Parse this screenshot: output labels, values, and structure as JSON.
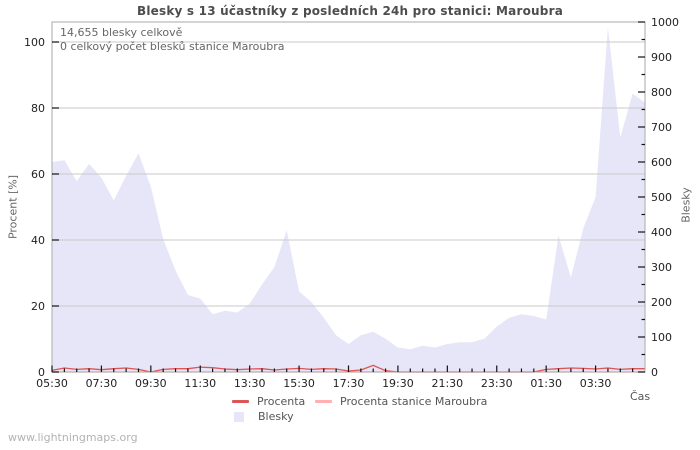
{
  "header": {
    "title": "Blesky s 13 účastníky z posledních 24h pro stanici: Maroubra"
  },
  "annotations": {
    "total": "14,655 blesky celkově",
    "station": "0 celkový počet blesků stanice Maroubra"
  },
  "watermark": "www.lightningmaps.org",
  "colors": {
    "procenta_line": "#dd5555",
    "station_line": "#ffb0b0",
    "blesky_area": "#e6e6f8",
    "grid": "#c9c9c9",
    "border": "#aaaaaa",
    "tick": "#111111"
  },
  "chart_data": {
    "type": "area",
    "title": "Blesky s 13 účastníky z posledních 24h pro stanici: Maroubra",
    "x_axis_label": "Čas",
    "x": [
      "05:30",
      "06:00",
      "06:30",
      "07:00",
      "07:30",
      "08:00",
      "08:30",
      "09:00",
      "09:30",
      "10:00",
      "10:30",
      "11:00",
      "11:30",
      "12:00",
      "12:30",
      "13:00",
      "13:30",
      "14:00",
      "14:30",
      "15:00",
      "15:30",
      "16:00",
      "16:30",
      "17:00",
      "17:30",
      "18:00",
      "18:30",
      "19:00",
      "19:30",
      "20:00",
      "20:30",
      "21:00",
      "21:30",
      "22:00",
      "22:30",
      "23:00",
      "23:30",
      "00:00",
      "00:30",
      "01:00",
      "01:30",
      "02:00",
      "02:30",
      "03:00",
      "03:30",
      "04:00",
      "04:30",
      "05:00",
      "05:30"
    ],
    "x_major_labels": [
      "05:30",
      "07:30",
      "09:30",
      "11:30",
      "13:30",
      "15:30",
      "17:30",
      "19:30",
      "21:30",
      "23:30",
      "01:30",
      "03:30"
    ],
    "left_axis": {
      "label": "Procent  [%]",
      "min": 0,
      "max": 100,
      "ticks": [
        0,
        20,
        40,
        60,
        80,
        100
      ]
    },
    "right_axis": {
      "label": "Blesky",
      "min": 0,
      "max": 1000,
      "ticks": [
        0,
        100,
        200,
        300,
        400,
        500,
        600,
        700,
        800,
        900,
        1000
      ],
      "minor_step": 50
    },
    "grid": "horizontal",
    "legend_position": "bottom-center",
    "series": [
      {
        "name": "Blesky",
        "type": "area",
        "axis": "right",
        "color": "#e6e6f8",
        "values": [
          600,
          605,
          545,
          595,
          555,
          490,
          560,
          625,
          530,
          380,
          290,
          220,
          210,
          165,
          175,
          170,
          195,
          250,
          300,
          405,
          230,
          200,
          155,
          105,
          80,
          105,
          115,
          95,
          70,
          65,
          75,
          70,
          80,
          85,
          85,
          95,
          130,
          155,
          165,
          160,
          150,
          390,
          270,
          410,
          500,
          985,
          670,
          795,
          770
        ]
      },
      {
        "name": "Procenta",
        "type": "line",
        "axis": "left",
        "color": "#dd5555",
        "values": [
          0.5,
          1.2,
          0.8,
          1.0,
          0.7,
          1.0,
          1.2,
          0.8,
          0.0,
          0.8,
          1.0,
          1.0,
          1.5,
          1.3,
          0.9,
          0.7,
          0.9,
          1.0,
          0.6,
          0.9,
          1.1,
          0.8,
          1.0,
          0.9,
          0.3,
          0.6,
          2.0,
          0.4,
          0.0,
          0.0,
          0.0,
          0.0,
          0.0,
          0.0,
          0.0,
          0.0,
          0.0,
          0.0,
          0.0,
          0.0,
          0.8,
          1.0,
          1.2,
          1.1,
          0.9,
          1.2,
          0.8,
          1.0,
          1.0
        ]
      },
      {
        "name": "Procenta stanice Maroubra",
        "type": "line",
        "axis": "left",
        "color": "#ffb0b0",
        "values": [
          0,
          0,
          0,
          0,
          0,
          0,
          0,
          0,
          0,
          0,
          0,
          0,
          0,
          0,
          0,
          0,
          0,
          0,
          0,
          0,
          0,
          0,
          0,
          0,
          0,
          0,
          0,
          0,
          0,
          0,
          0,
          0,
          0,
          0,
          0,
          0,
          0,
          0,
          0,
          0,
          0,
          0,
          0,
          0,
          0,
          0,
          0,
          0,
          0
        ]
      }
    ]
  }
}
